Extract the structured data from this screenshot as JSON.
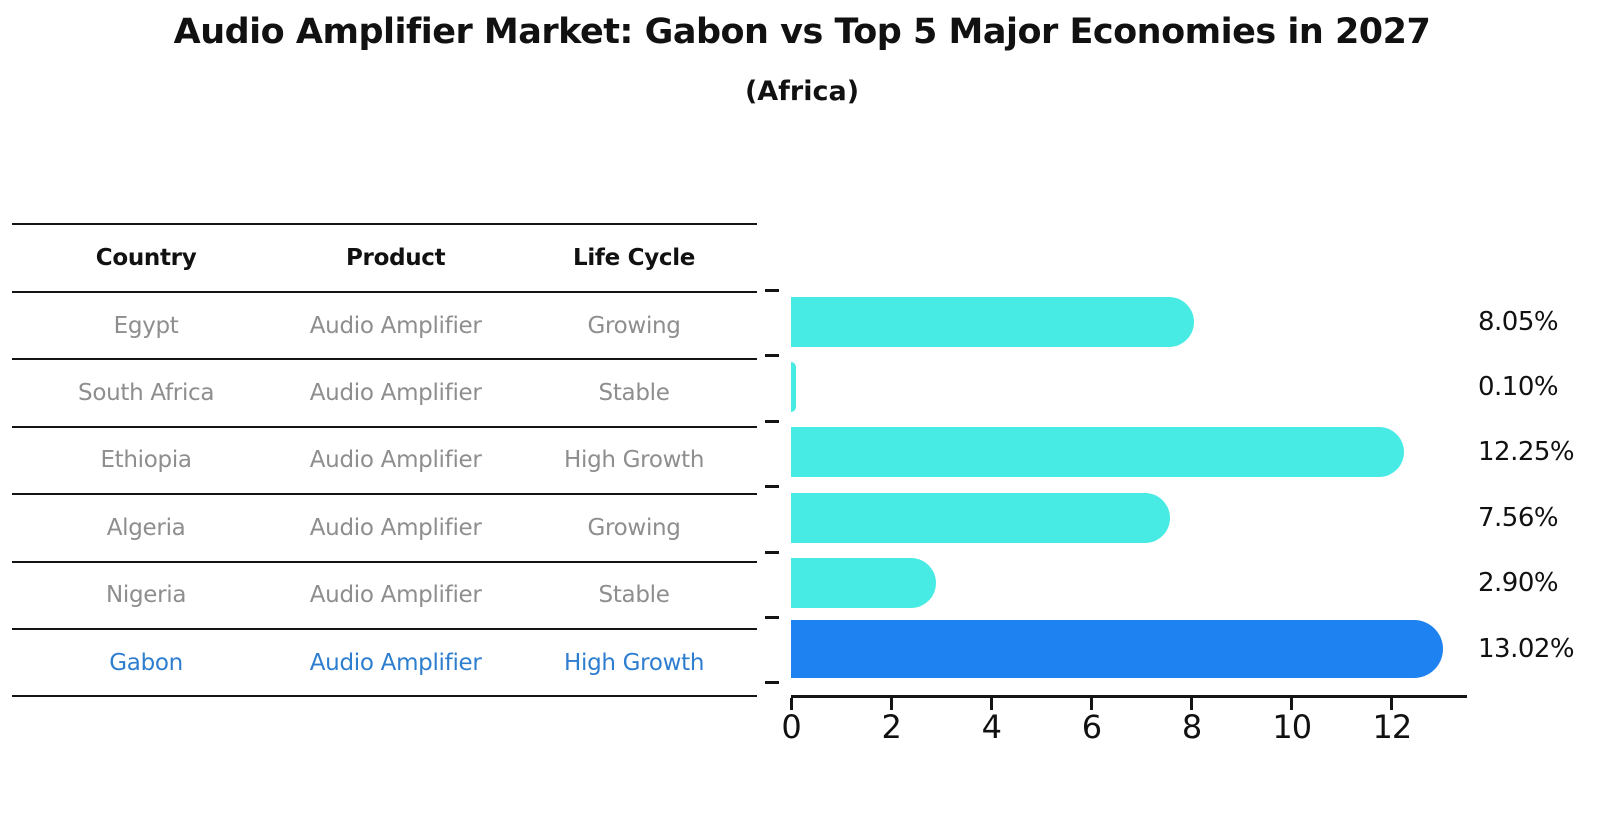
{
  "title": "Audio Amplifier Market: Gabon vs Top 5 Major Economies in 2027",
  "subtitle": "(Africa)",
  "table": {
    "headers": {
      "country": "Country",
      "product": "Product",
      "life_cycle": "Life Cycle"
    },
    "rows": [
      {
        "country": "Egypt",
        "product": "Audio Amplifier",
        "life_cycle": "Growing",
        "highlight": false
      },
      {
        "country": "South Africa",
        "product": "Audio Amplifier",
        "life_cycle": "Stable",
        "highlight": false
      },
      {
        "country": "Ethiopia",
        "product": "Audio Amplifier",
        "life_cycle": "High Growth",
        "highlight": false
      },
      {
        "country": "Algeria",
        "product": "Audio Amplifier",
        "life_cycle": "Growing",
        "highlight": false
      },
      {
        "country": "Nigeria",
        "product": "Audio Amplifier",
        "life_cycle": "Stable",
        "highlight": false
      },
      {
        "country": "Gabon",
        "product": "Audio Amplifier",
        "life_cycle": "High Growth",
        "highlight": true
      }
    ]
  },
  "chart_data": {
    "type": "bar",
    "orientation": "horizontal",
    "categories": [
      "Egypt",
      "South Africa",
      "Ethiopia",
      "Algeria",
      "Nigeria",
      "Gabon"
    ],
    "values": [
      8.05,
      0.1,
      12.25,
      7.56,
      2.9,
      13.02
    ],
    "value_labels": [
      "8.05%",
      "0.10%",
      "12.25%",
      "7.56%",
      "2.90%",
      "13.02%"
    ],
    "x_ticks": [
      0,
      2,
      4,
      6,
      8,
      10,
      12
    ],
    "xlim": [
      0,
      13.5
    ],
    "grid": false,
    "legend": false,
    "bar_color": "#47ebe4",
    "highlight_color": "#1e82f0",
    "highlight_index": 5,
    "title": "Audio Amplifier Market: Gabon vs Top 5 Major Economies in 2027",
    "subtitle": "(Africa)"
  },
  "colors": {
    "muted_text": "#8e8e8e",
    "highlight_text": "#2e7ecf",
    "line": "#141414"
  }
}
